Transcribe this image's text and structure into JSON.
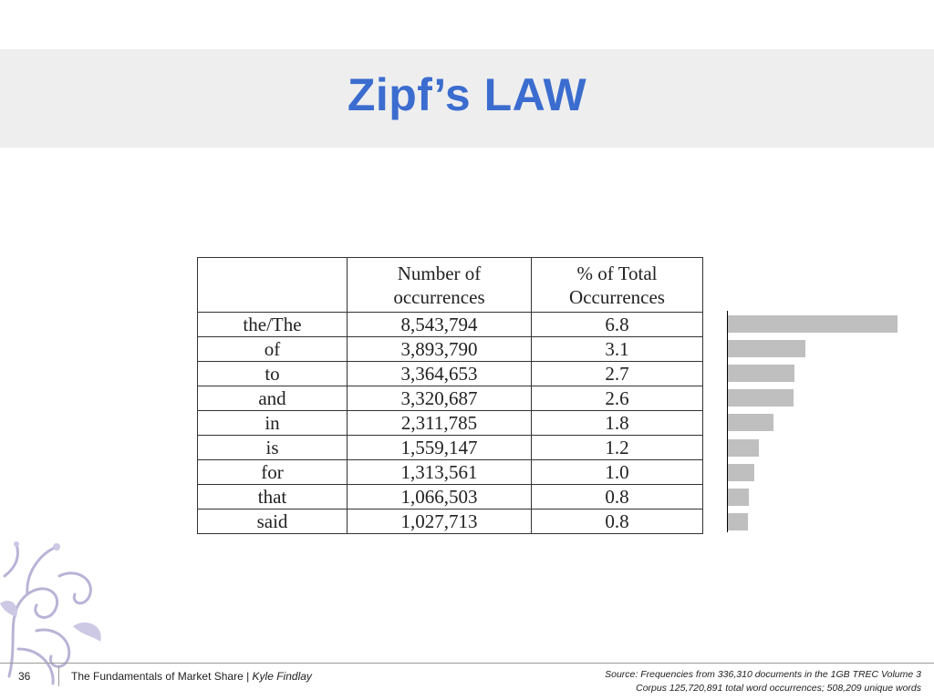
{
  "slide": {
    "title": "Zipf’s LAW",
    "page_number": "36"
  },
  "table": {
    "headers": [
      "",
      "Number of occurrences",
      "% of Total Occurrences"
    ],
    "header_lines": {
      "col2_line1": "Number of",
      "col2_line2": "occurrences",
      "col3_line1": "% of Total",
      "col3_line2": "Occurrences"
    },
    "rows": [
      {
        "word": "the/The",
        "count": "8,543,794",
        "pct": "6.8"
      },
      {
        "word": "of",
        "count": "3,893,790",
        "pct": "3.1"
      },
      {
        "word": "to",
        "count": "3,364,653",
        "pct": "2.7"
      },
      {
        "word": "and",
        "count": "3,320,687",
        "pct": "2.6"
      },
      {
        "word": "in",
        "count": "2,311,785",
        "pct": "1.8"
      },
      {
        "word": "is",
        "count": "1,559,147",
        "pct": "1.2"
      },
      {
        "word": "for",
        "count": "1,313,561",
        "pct": "1.0"
      },
      {
        "word": "that",
        "count": "1,066,503",
        "pct": "0.8"
      },
      {
        "word": "said",
        "count": "1,027,713",
        "pct": "0.8"
      }
    ]
  },
  "chart_data": {
    "type": "bar",
    "orientation": "horizontal",
    "categories": [
      "the/The",
      "of",
      "to",
      "and",
      "in",
      "is",
      "for",
      "that",
      "said"
    ],
    "values": [
      8543794,
      3893790,
      3364653,
      3320687,
      2311785,
      1559147,
      1313561,
      1066503,
      1027713
    ],
    "bar_color": "#bfbfbf",
    "axis_labels_shown": false
  },
  "footer": {
    "course": "The Fundamentals of Market Share | ",
    "author": "Kyle Findlay",
    "source_line1": "Source: Frequencies from 336,310 documents in the 1GB TREC Volume 3",
    "source_line2": "Corpus 125,720,891 total word occurrences; 508,209 unique words"
  },
  "colors": {
    "title": "#3b6ccf",
    "title_band": "#eeeeee",
    "ornament": "#b9b4d6"
  }
}
